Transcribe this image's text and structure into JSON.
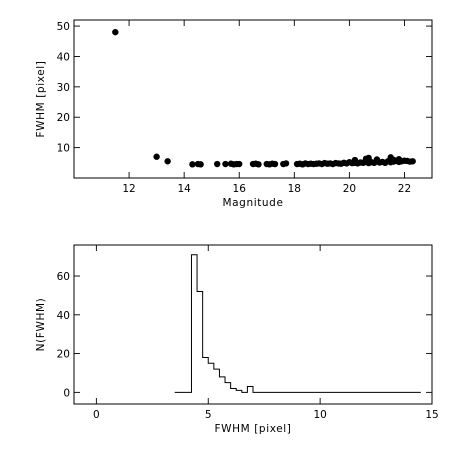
{
  "chart_data": [
    {
      "type": "scatter",
      "xlabel": "Magnitude",
      "ylabel": "FWHM [pixel]",
      "xlim": [
        10,
        23
      ],
      "ylim": [
        0,
        52
      ],
      "xticks": [
        12,
        14,
        16,
        18,
        20,
        22
      ],
      "yticks": [
        10,
        20,
        30,
        40,
        50
      ],
      "grid": false,
      "series": [
        {
          "x": [
            11.5,
            13.0,
            13.4,
            14.3,
            14.5,
            14.6,
            15.2,
            15.5,
            15.7,
            15.8,
            15.9,
            16.0,
            16.5,
            16.6,
            16.7,
            17.0,
            17.1,
            17.2,
            17.3,
            17.6,
            17.7,
            18.1,
            18.2,
            18.3,
            18.4,
            18.5,
            18.6,
            18.7,
            18.8,
            18.9,
            19.0,
            19.1,
            19.2,
            19.3,
            19.4,
            19.5,
            19.6,
            19.7,
            19.8,
            19.9,
            20.0,
            20.1,
            20.2,
            20.3,
            20.4,
            20.5,
            20.6,
            20.7,
            20.8,
            20.9,
            21.0,
            21.1,
            21.2,
            21.3,
            21.4,
            21.5,
            21.6,
            21.7,
            21.8,
            21.9,
            22.0,
            22.1,
            22.2,
            22.3,
            20.6,
            20.7,
            21.5,
            21.6,
            20.2,
            21.0,
            21.8
          ],
          "y": [
            48,
            7,
            5.5,
            4.5,
            4.6,
            4.5,
            4.6,
            4.6,
            4.7,
            4.5,
            4.6,
            4.6,
            4.6,
            4.7,
            4.5,
            4.6,
            4.5,
            4.7,
            4.6,
            4.6,
            4.8,
            4.6,
            4.7,
            4.5,
            4.8,
            4.6,
            4.7,
            4.6,
            4.7,
            4.8,
            4.6,
            4.9,
            4.7,
            4.8,
            4.6,
            4.9,
            4.8,
            4.7,
            5.0,
            4.8,
            5.2,
            4.9,
            5.0,
            4.8,
            5.1,
            5.0,
            5.3,
            4.9,
            5.2,
            5.0,
            5.4,
            5.1,
            5.3,
            5.0,
            5.5,
            5.2,
            5.4,
            5.6,
            5.3,
            5.5,
            5.7,
            5.6,
            5.4,
            5.5,
            6.3,
            6.6,
            6.8,
            6.0,
            5.9,
            6.1,
            6.2
          ]
        }
      ]
    },
    {
      "type": "histogram",
      "xlabel": "FWHM [pixel]",
      "ylabel": "N(FWHM)",
      "xlim": [
        -1,
        15
      ],
      "ylim": [
        -6,
        76
      ],
      "xticks": [
        0,
        5,
        10,
        15
      ],
      "yticks": [
        0,
        20,
        40,
        60
      ],
      "grid": false,
      "bin_edges": [
        3.5,
        4.25,
        4.5,
        4.75,
        5.0,
        5.25,
        5.5,
        5.75,
        6.0,
        6.25,
        6.5,
        6.75,
        7.0,
        7.25,
        14.5
      ],
      "counts": [
        0,
        71,
        52,
        18,
        15,
        12,
        8,
        5,
        2,
        1,
        0,
        3,
        0,
        0
      ]
    }
  ]
}
